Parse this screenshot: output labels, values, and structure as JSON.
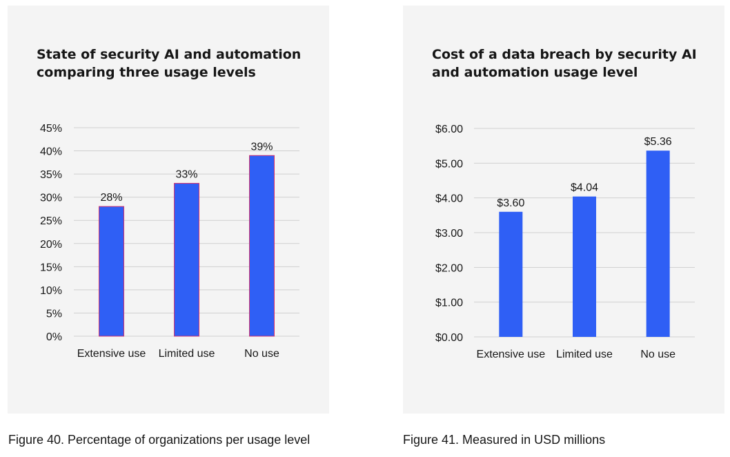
{
  "chart_data": [
    {
      "type": "bar",
      "title": "State of security AI and automation comparing three usage levels",
      "categories": [
        "Extensive use",
        "Limited use",
        "No use"
      ],
      "values": [
        28,
        33,
        39
      ],
      "value_labels": [
        "28%",
        "33%",
        "39%"
      ],
      "ylim": [
        0,
        45
      ],
      "yticks": [
        0,
        5,
        10,
        15,
        20,
        25,
        30,
        35,
        40,
        45
      ],
      "ytick_labels": [
        "0%",
        "5%",
        "10%",
        "15%",
        "20%",
        "25%",
        "30%",
        "35%",
        "40%",
        "45%"
      ],
      "xlabel": "",
      "ylabel": "",
      "grid": true,
      "bar_color": "#2f5ff5",
      "bar_outline": "#d6336c",
      "caption": "Figure 40. Percentage of organizations per usage level"
    },
    {
      "type": "bar",
      "title": "Cost of a data breach by security AI and automation usage level",
      "categories": [
        "Extensive use",
        "Limited use",
        "No use"
      ],
      "values": [
        3.6,
        4.04,
        5.36
      ],
      "value_labels": [
        "$3.60",
        "$4.04",
        "$5.36"
      ],
      "ylim": [
        0,
        6
      ],
      "yticks": [
        0,
        1,
        2,
        3,
        4,
        5,
        6
      ],
      "ytick_labels": [
        "$0.00",
        "$1.00",
        "$2.00",
        "$3.00",
        "$4.00",
        "$5.00",
        "$6.00"
      ],
      "xlabel": "",
      "ylabel": "",
      "grid": true,
      "bar_color": "#2f5ff5",
      "caption": "Figure 41. Measured in USD millions"
    }
  ]
}
